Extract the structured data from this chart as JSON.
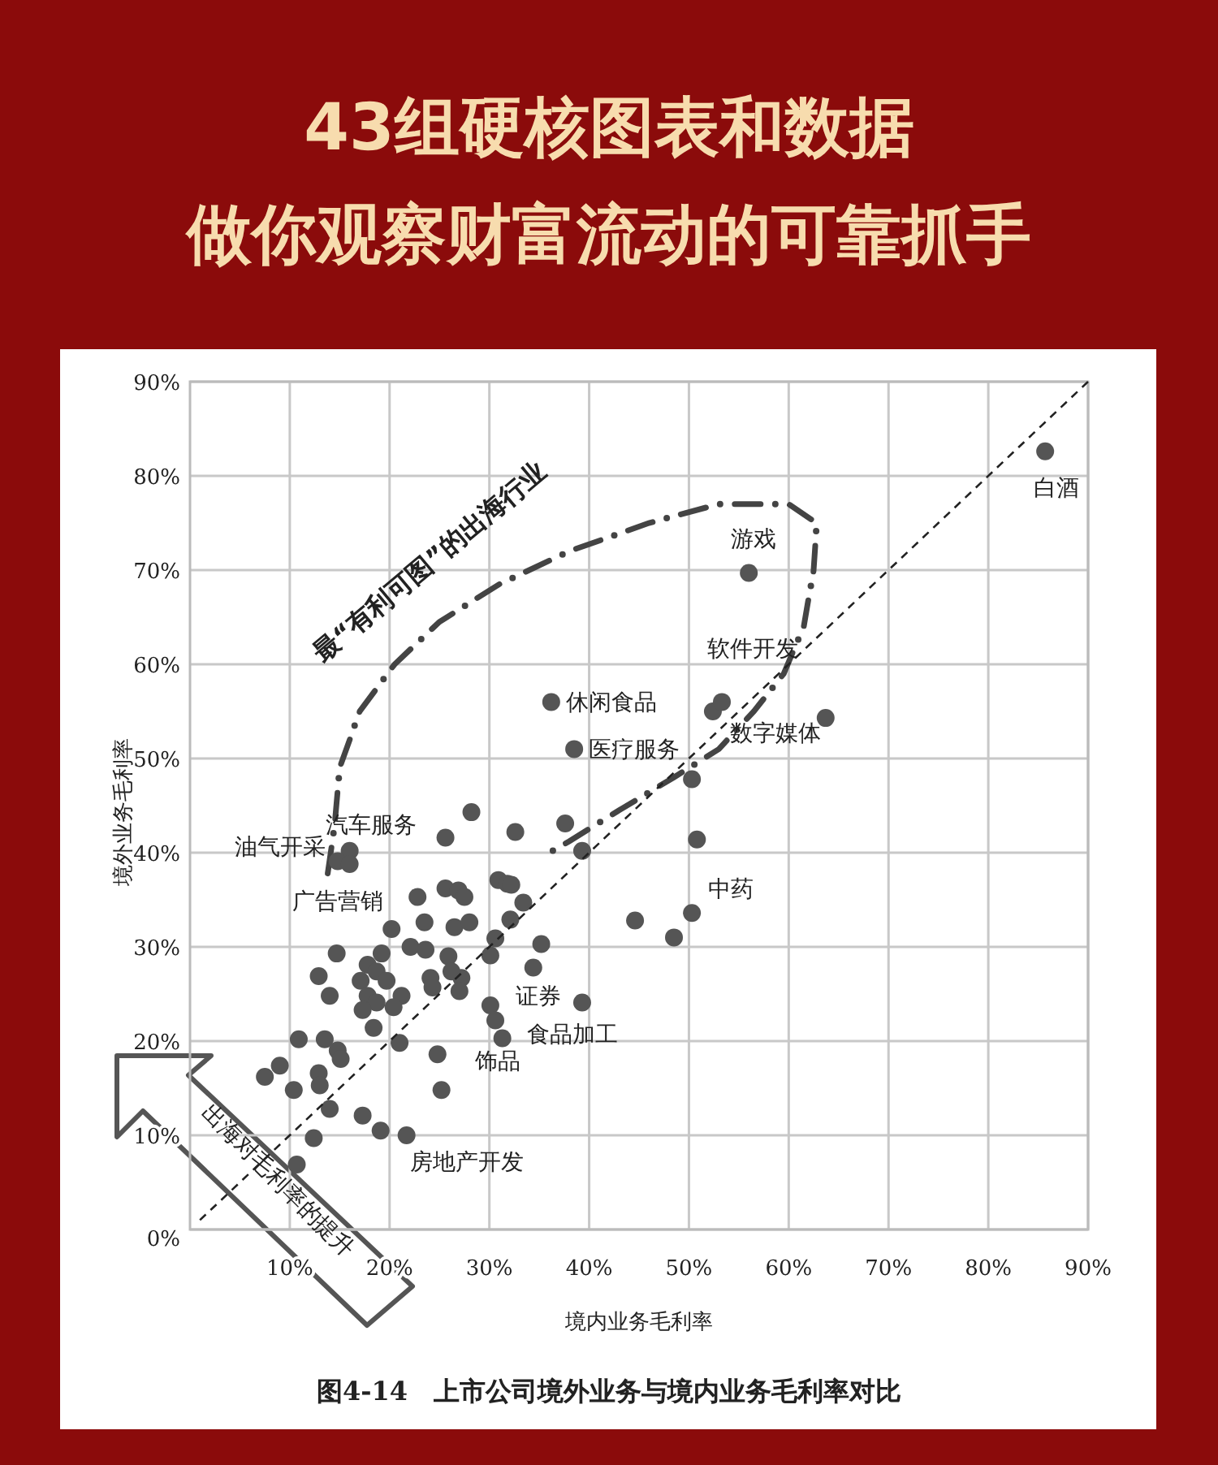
{
  "chart_data": {
    "type": "scatter",
    "title": "43组硬核图表和数据",
    "subtitle": "做你观察财富流动的可靠抓手",
    "xlabel": "境内业务毛利率",
    "ylabel": "境外业务毛利率",
    "xlim": [
      0,
      90
    ],
    "ylim": [
      0,
      90
    ],
    "xticks": [
      {
        "value": 10,
        "label": "10%"
      },
      {
        "value": 20,
        "label": "20%"
      },
      {
        "value": 30,
        "label": "30%"
      },
      {
        "value": 40,
        "label": "40%"
      },
      {
        "value": 50,
        "label": "50%"
      },
      {
        "value": 60,
        "label": "60%"
      },
      {
        "value": 70,
        "label": "70%"
      },
      {
        "value": 80,
        "label": "80%"
      },
      {
        "value": 90,
        "label": "90%"
      }
    ],
    "yticks": [
      {
        "value": 0,
        "label": "0%"
      },
      {
        "value": 10,
        "label": "10%"
      },
      {
        "value": 20,
        "label": "20%"
      },
      {
        "value": 30,
        "label": "30%"
      },
      {
        "value": 40,
        "label": "40%"
      },
      {
        "value": 50,
        "label": "50%"
      },
      {
        "value": 60,
        "label": "60%"
      },
      {
        "value": 70,
        "label": "70%"
      },
      {
        "value": 80,
        "label": "80%"
      },
      {
        "value": 90,
        "label": "90%"
      }
    ],
    "grid": true,
    "series": [
      {
        "type": "scatter",
        "marker": "circle",
        "color": "#555555",
        "x": [
          85.7,
          56.0,
          52.4,
          53.3,
          63.7,
          36.2,
          38.5,
          50.3,
          50.8,
          50.3,
          48.5,
          44.6,
          37.6,
          32.6,
          28.2,
          39.3,
          30.9,
          31.8,
          32.2,
          33.4,
          32.1,
          30.6,
          35.2,
          30.1,
          34.4,
          27.2,
          27.0,
          30.1,
          39.3,
          30.6,
          31.3,
          25.6,
          16.0,
          14.8,
          16.0,
          22.8,
          25.6,
          26.9,
          27.5,
          20.2,
          23.5,
          26.5,
          28.0,
          14.7,
          19.2,
          22.1,
          23.6,
          25.9,
          12.9,
          17.8,
          17.1,
          18.7,
          19.7,
          24.1,
          24.3,
          26.2,
          14.0,
          17.8,
          18.7,
          21.2,
          17.3,
          20.4,
          18.4,
          10.9,
          13.5,
          14.8,
          15.1,
          21.0,
          24.8,
          7.5,
          9.0,
          10.4,
          12.9,
          13.0,
          25.2,
          14.0,
          17.3,
          19.1,
          21.7,
          12.4,
          10.7
        ],
        "values": [
          82.6,
          69.7,
          55.0,
          56.0,
          54.3,
          56.0,
          51.0,
          47.8,
          41.4,
          33.6,
          31.0,
          32.8,
          43.1,
          42.2,
          44.3,
          40.2,
          37.1,
          36.7,
          36.6,
          34.7,
          32.9,
          30.9,
          30.3,
          29.1,
          27.8,
          26.7,
          25.3,
          23.8,
          24.1,
          22.2,
          20.3,
          41.6,
          40.2,
          39.1,
          38.8,
          35.3,
          36.2,
          36.0,
          35.3,
          31.9,
          32.6,
          32.1,
          32.6,
          29.3,
          29.3,
          30.0,
          29.7,
          29.0,
          26.9,
          28.1,
          26.4,
          27.4,
          26.4,
          26.7,
          25.7,
          27.4,
          24.8,
          24.8,
          24.1,
          24.8,
          23.3,
          23.6,
          21.4,
          20.2,
          20.2,
          19.0,
          18.1,
          19.8,
          18.6,
          16.2,
          17.4,
          14.8,
          16.6,
          15.3,
          14.8,
          12.8,
          12.1,
          10.5,
          10.0,
          9.7,
          6.9
        ]
      },
      {
        "type": "line",
        "line_style": "dashed",
        "color": "#222222",
        "x": [
          1,
          90
        ],
        "values": [
          1,
          90
        ]
      }
    ],
    "annotations": [
      {
        "text": "白酒",
        "x": 85.7,
        "y": 82.6
      },
      {
        "text": "游戏",
        "x": 56.0,
        "y": 69.7
      },
      {
        "text": "软件开发",
        "x": 53.3,
        "y": 56.0
      },
      {
        "text": "数字媒体",
        "x": 63.7,
        "y": 54.3
      },
      {
        "text": "休闲食品",
        "x": 36.2,
        "y": 56.0
      },
      {
        "text": "医疗服务",
        "x": 38.5,
        "y": 51.0
      },
      {
        "text": "油气开采",
        "x": 16.0,
        "y": 40.2
      },
      {
        "text": "汽车服务",
        "x": 25.6,
        "y": 41.6
      },
      {
        "text": "广告营销",
        "x": 22.8,
        "y": 35.3
      },
      {
        "text": "中药",
        "x": 50.3,
        "y": 33.6
      },
      {
        "text": "证券",
        "x": 39.3,
        "y": 24.1
      },
      {
        "text": "食品加工",
        "x": 31.3,
        "y": 20.3
      },
      {
        "text": "饰品",
        "x": 24.8,
        "y": 18.6
      },
      {
        "text": "房地产开发",
        "x": 21.7,
        "y": 10.0
      },
      "最“有利可图”的出海行业",
      "出海对毛利率的提升",
      "图4-14　上市公司境外业务与境内业务毛利率对比"
    ]
  }
}
